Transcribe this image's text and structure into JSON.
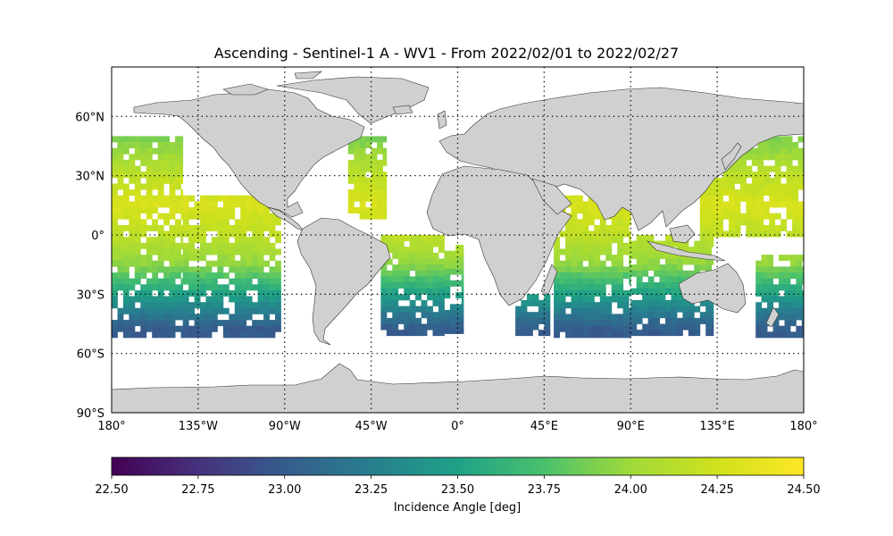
{
  "title": "Ascending - Sentinel-1 A - WV1 - From 2022/02/01 to 2022/02/27",
  "lat_ticks": [
    "60°N",
    "30°N",
    "0°",
    "30°S",
    "60°S",
    "90°S"
  ],
  "lat_values": [
    60,
    30,
    0,
    -30,
    -60,
    -90
  ],
  "lon_ticks": [
    "180°",
    "135°W",
    "90°W",
    "45°W",
    "0°",
    "45°E",
    "90°E",
    "135°E",
    "180°"
  ],
  "lon_values": [
    -180,
    -135,
    -90,
    -45,
    0,
    45,
    90,
    135,
    180
  ],
  "colorbar": {
    "label": "Incidence Angle [deg]",
    "ticks": [
      "22.50",
      "22.75",
      "23.00",
      "23.25",
      "23.50",
      "23.75",
      "24.00",
      "24.25",
      "24.50"
    ],
    "min": 22.5,
    "max": 24.5,
    "colormap": "viridis"
  },
  "colors": {
    "land": "#d0d0d0",
    "coast": "#333333"
  },
  "chart_data": {
    "type": "heatmap",
    "title": "Ascending - Sentinel-1 A - WV1 - From 2022/02/01 to 2022/02/27",
    "xlim": [
      -180,
      180
    ],
    "ylim": [
      -90,
      85
    ],
    "grid": true,
    "value_range": [
      22.5,
      24.5
    ],
    "value_label": "Incidence Angle [deg]",
    "latitude_profile": [
      {
        "lat": 48,
        "value": 23.9
      },
      {
        "lat": 30,
        "value": 24.15
      },
      {
        "lat": 15,
        "value": 24.3
      },
      {
        "lat": 0,
        "value": 24.15
      },
      {
        "lat": -15,
        "value": 23.95
      },
      {
        "lat": -30,
        "value": 23.5
      },
      {
        "lat": -40,
        "value": 23.2
      },
      {
        "lat": -48,
        "value": 23.0
      }
    ],
    "swaths": [
      {
        "lon_min": -180,
        "lon_max": -143,
        "lat_min": -50,
        "lat_max": 50
      },
      {
        "lon_min": -143,
        "lon_max": -92,
        "lat_min": -50,
        "lat_max": 20
      },
      {
        "lon_min": -57,
        "lon_max": -37,
        "lat_min": 10,
        "lat_max": 50
      },
      {
        "lon_min": -40,
        "lon_max": -7,
        "lat_min": -50,
        "lat_max": 0
      },
      {
        "lon_min": -7,
        "lon_max": 3,
        "lat_min": -50,
        "lat_max": -5
      },
      {
        "lon_min": 30,
        "lon_max": 48,
        "lat_min": -50,
        "lat_max": -30
      },
      {
        "lon_min": 50,
        "lon_max": 90,
        "lat_min": -50,
        "lat_max": 20
      },
      {
        "lon_min": 90,
        "lon_max": 133,
        "lat_min": -50,
        "lat_max": 0
      },
      {
        "lon_min": 126,
        "lon_max": 180,
        "lat_min": 0,
        "lat_max": 50
      },
      {
        "lon_min": 155,
        "lon_max": 180,
        "lat_min": -50,
        "lat_max": -10
      }
    ]
  }
}
